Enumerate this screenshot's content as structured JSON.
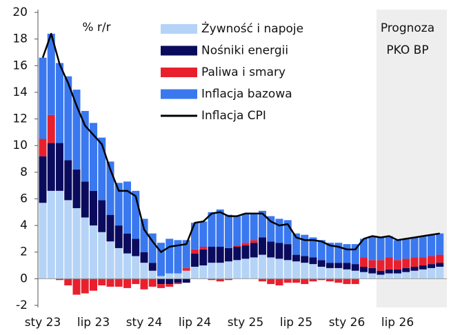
{
  "chart_data": {
    "type": "bar",
    "stacked": true,
    "unit_label": "% r/r",
    "forecast_label": [
      "Prognoza",
      "PKO BP"
    ],
    "forecast_from": 40,
    "categories": [
      "sty 23",
      null,
      null,
      null,
      null,
      null,
      "lip 23",
      null,
      null,
      null,
      null,
      null,
      "sty 24",
      null,
      null,
      null,
      null,
      null,
      "lip 24",
      null,
      null,
      null,
      null,
      null,
      "sty 25",
      null,
      null,
      null,
      null,
      null,
      "lip 25",
      null,
      null,
      null,
      null,
      null,
      "sty 26",
      null,
      null,
      null,
      null,
      null,
      "lip 26",
      null,
      null,
      null,
      null,
      null
    ],
    "ylim": [
      -2,
      20
    ],
    "yticks": [
      -2,
      0,
      2,
      4,
      6,
      8,
      10,
      12,
      14,
      16,
      18,
      20
    ],
    "series": [
      {
        "name": "Żywność i napoje",
        "color": "#b4d3f6",
        "kind": "bar",
        "values": [
          5.7,
          6.6,
          6.6,
          5.9,
          5.3,
          4.6,
          4.0,
          3.5,
          2.8,
          2.3,
          1.9,
          1.7,
          1.2,
          0.6,
          0.2,
          0.4,
          0.4,
          0.6,
          0.9,
          1.0,
          1.2,
          1.2,
          1.3,
          1.4,
          1.5,
          1.6,
          1.8,
          1.6,
          1.5,
          1.4,
          1.3,
          1.2,
          1.1,
          0.9,
          0.8,
          0.8,
          0.7,
          0.6,
          0.5,
          0.4,
          0.3,
          0.4,
          0.4,
          0.5,
          0.6,
          0.7,
          0.8,
          0.9
        ]
      },
      {
        "name": "Nośniki energii",
        "color": "#0b0b5e",
        "kind": "bar",
        "values": [
          3.5,
          3.6,
          3.6,
          3.0,
          2.9,
          2.7,
          2.6,
          2.4,
          2.0,
          1.7,
          1.5,
          1.3,
          0.8,
          0.6,
          -0.4,
          -0.4,
          -0.3,
          -0.3,
          1.0,
          1.2,
          1.2,
          1.2,
          1.0,
          1.0,
          1.0,
          1.1,
          1.3,
          1.2,
          1.2,
          1.2,
          0.5,
          0.5,
          0.5,
          0.5,
          0.4,
          0.4,
          0.5,
          0.5,
          0.4,
          0.4,
          0.3,
          0.3,
          0.3,
          0.3,
          0.3,
          0.3,
          0.3,
          0.3
        ]
      },
      {
        "name": "Paliwa i smary",
        "color": "#e8202e",
        "kind": "bar",
        "values": [
          1.3,
          2.1,
          -0.1,
          -0.5,
          -1.2,
          -1.1,
          -0.9,
          -0.5,
          -0.6,
          -0.6,
          -0.7,
          -0.4,
          -0.8,
          -0.6,
          -0.3,
          -0.2,
          -0.1,
          0.2,
          0.3,
          0.2,
          -0.1,
          -0.2,
          -0.1,
          0.1,
          0.2,
          0.2,
          -0.2,
          -0.4,
          -0.5,
          -0.3,
          -0.3,
          -0.4,
          -0.2,
          -0.1,
          -0.2,
          -0.3,
          -0.4,
          -0.4,
          0.7,
          0.6,
          0.8,
          0.9,
          0.7,
          0.7,
          0.7,
          0.6,
          0.6,
          0.6
        ]
      },
      {
        "name": "Inflacja bazowa",
        "color": "#3a78ef",
        "kind": "bar",
        "values": [
          6.1,
          6.1,
          6.0,
          6.3,
          6.0,
          5.3,
          5.1,
          4.7,
          4.0,
          3.2,
          3.9,
          3.6,
          2.5,
          2.2,
          2.5,
          2.6,
          2.5,
          2.1,
          2.0,
          1.9,
          2.6,
          2.8,
          2.5,
          2.2,
          2.2,
          2.0,
          2.0,
          1.9,
          1.8,
          1.8,
          1.6,
          1.6,
          1.5,
          1.5,
          1.5,
          1.5,
          1.4,
          1.5,
          1.4,
          1.8,
          1.7,
          1.6,
          1.5,
          1.5,
          1.5,
          1.6,
          1.6,
          1.6
        ]
      },
      {
        "name": "Inflacja CPI",
        "color": "#000000",
        "kind": "line",
        "values": [
          16.6,
          18.4,
          16.1,
          14.7,
          13.0,
          11.5,
          10.8,
          10.1,
          8.2,
          6.6,
          6.6,
          6.2,
          3.7,
          2.8,
          2.0,
          2.4,
          2.5,
          2.6,
          4.2,
          4.3,
          4.9,
          5.0,
          4.7,
          4.7,
          4.9,
          4.9,
          4.9,
          4.3,
          4.0,
          4.1,
          3.1,
          2.9,
          2.9,
          2.8,
          2.5,
          2.4,
          2.2,
          2.2,
          3.0,
          3.2,
          3.1,
          3.2,
          2.9,
          3.0,
          3.1,
          3.2,
          3.3,
          3.4
        ]
      }
    ]
  }
}
